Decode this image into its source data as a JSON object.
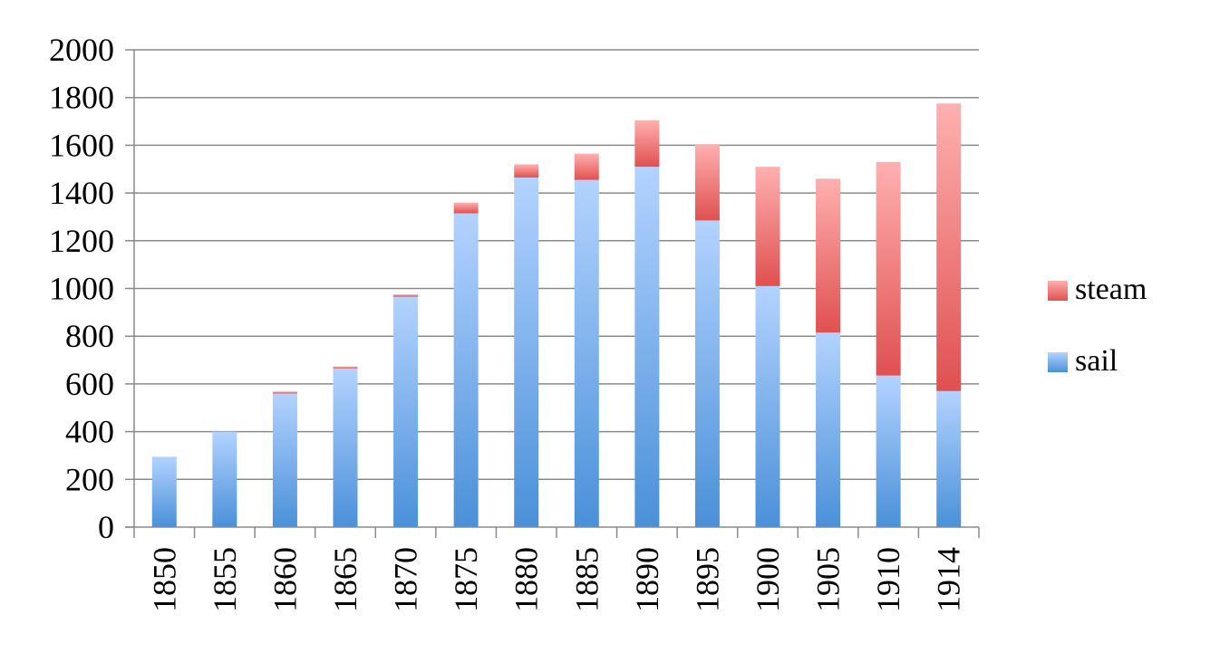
{
  "chart_data": {
    "type": "bar",
    "stacked": true,
    "categories": [
      "1850",
      "1855",
      "1860",
      "1865",
      "1870",
      "1875",
      "1880",
      "1885",
      "1890",
      "1895",
      "1900",
      "1905",
      "1910",
      "1914"
    ],
    "series": [
      {
        "name": "sail",
        "color": "#4a90d9",
        "color_light": "#b3d3ff",
        "values": [
          295,
          400,
          560,
          665,
          965,
          1315,
          1465,
          1455,
          1510,
          1285,
          1010,
          815,
          635,
          570
        ]
      },
      {
        "name": "steam",
        "color": "#e05050",
        "color_light": "#ffb0b0",
        "values": [
          0,
          0,
          8,
          8,
          10,
          45,
          55,
          110,
          195,
          320,
          500,
          645,
          895,
          1205
        ]
      }
    ],
    "y_ticks": [
      "0",
      "200",
      "400",
      "600",
      "800",
      "1000",
      "1200",
      "1400",
      "1600",
      "1800",
      "2000"
    ],
    "ylim": [
      0,
      2000
    ],
    "grid": true,
    "legend": {
      "position": "right",
      "order": [
        "steam",
        "sail"
      ]
    },
    "title": "",
    "xlabel": "",
    "ylabel": ""
  }
}
